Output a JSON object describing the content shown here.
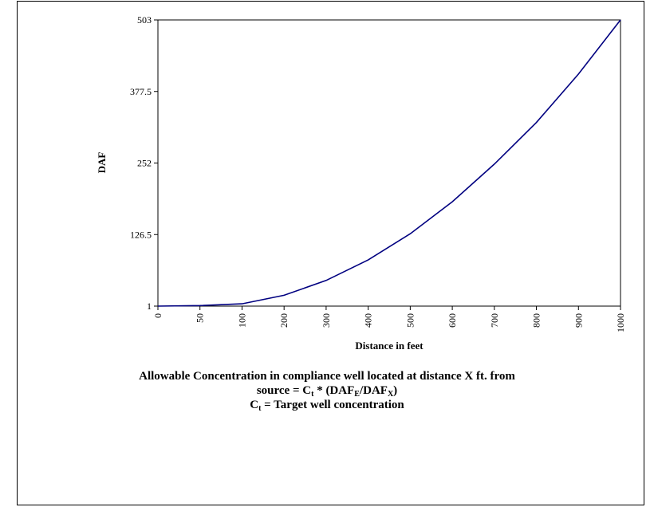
{
  "chart_data": {
    "type": "line",
    "title": "",
    "xlabel": "Distance in feet",
    "ylabel": "DAF",
    "categories": [
      "0",
      "50",
      "100",
      "200",
      "300",
      "400",
      "500",
      "600",
      "700",
      "800",
      "900",
      "1000"
    ],
    "y_ticks": [
      "1",
      "126.5",
      "252",
      "377.5",
      "503"
    ],
    "ylim": [
      1,
      503
    ],
    "grid": false,
    "legend": "none",
    "series": [
      {
        "values": [
          1,
          2,
          5,
          20,
          46,
          82,
          128,
          184,
          250,
          323,
          408,
          503
        ]
      }
    ],
    "line_color": "#000080"
  },
  "caption": {
    "line1": "Allowable Concentration in compliance well located at distance X ft. from",
    "line2_prefix": "source  =  C",
    "line2_sub_t": "t",
    "line2_mid": " * (DAF",
    "line2_sub_e": "E",
    "line2_slash": "/DAF",
    "line2_sub_x": "X",
    "line2_suffix": ")",
    "line3_prefix": "C",
    "line3_sub_t": "t",
    "line3_suffix": "  =  Target well concentration"
  }
}
